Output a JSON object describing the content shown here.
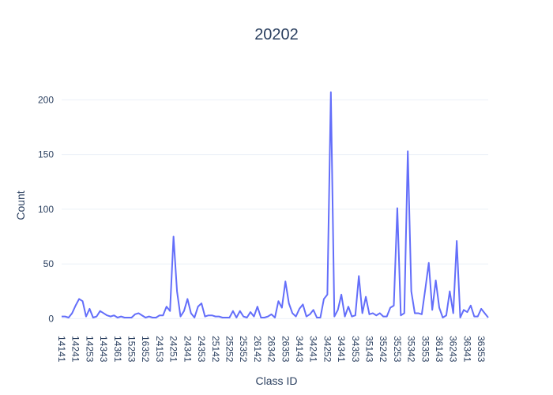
{
  "chart_data": {
    "type": "line",
    "title": "20202",
    "x_label": "Class ID",
    "y_label": "Count",
    "categories": [
      "14141",
      null,
      null,
      null,
      "14241",
      null,
      null,
      null,
      "14253",
      null,
      null,
      null,
      "14343",
      null,
      null,
      null,
      "14361",
      null,
      null,
      null,
      "15253",
      null,
      null,
      null,
      "16352",
      null,
      null,
      null,
      "24153",
      null,
      null,
      null,
      "24251",
      null,
      null,
      null,
      "24341",
      null,
      null,
      null,
      "24353",
      null,
      null,
      null,
      "25142",
      null,
      null,
      null,
      "25252",
      null,
      null,
      null,
      "25352",
      null,
      null,
      null,
      "26142",
      null,
      null,
      null,
      "26342",
      null,
      null,
      null,
      "26353",
      null,
      null,
      null,
      "34143",
      null,
      null,
      null,
      "34241",
      null,
      null,
      null,
      "34252",
      null,
      null,
      null,
      "34341",
      null,
      null,
      null,
      "34353",
      null,
      null,
      null,
      "35143",
      null,
      null,
      null,
      "35242",
      null,
      null,
      null,
      "35253",
      null,
      null,
      null,
      "35342",
      null,
      null,
      null,
      "35353",
      null,
      null,
      null,
      "36143",
      null,
      null,
      null,
      "36243",
      null,
      null,
      null,
      "36341",
      null,
      null,
      null,
      "36353",
      null,
      null
    ],
    "series": [
      {
        "name": "Count",
        "color": "#636efa",
        "values": [
          2,
          2,
          1,
          5,
          12,
          18,
          16,
          2,
          9,
          1,
          2,
          7,
          5,
          3,
          2,
          3,
          1,
          2,
          1,
          1,
          1,
          4,
          5,
          3,
          1,
          2,
          1,
          1,
          3,
          3,
          11,
          7,
          75,
          25,
          2,
          7,
          18,
          5,
          1,
          11,
          14,
          2,
          3,
          3,
          2,
          2,
          1,
          1,
          1,
          7,
          1,
          7,
          2,
          1,
          6,
          2,
          11,
          1,
          1,
          2,
          4,
          1,
          16,
          10,
          34,
          14,
          5,
          2,
          9,
          13,
          2,
          4,
          8,
          1,
          1,
          18,
          22,
          207,
          2,
          8,
          22,
          2,
          11,
          2,
          3,
          39,
          5,
          20,
          4,
          5,
          3,
          5,
          2,
          2,
          10,
          12,
          101,
          3,
          5,
          153,
          25,
          5,
          5,
          4,
          27,
          51,
          8,
          35,
          10,
          1,
          3,
          25,
          5,
          71,
          1,
          8,
          6,
          12,
          2,
          2,
          9,
          5,
          1
        ]
      }
    ],
    "ylim": [
      -12,
      219
    ],
    "yticks": [
      0,
      50,
      100,
      150,
      200
    ],
    "grid": true
  }
}
